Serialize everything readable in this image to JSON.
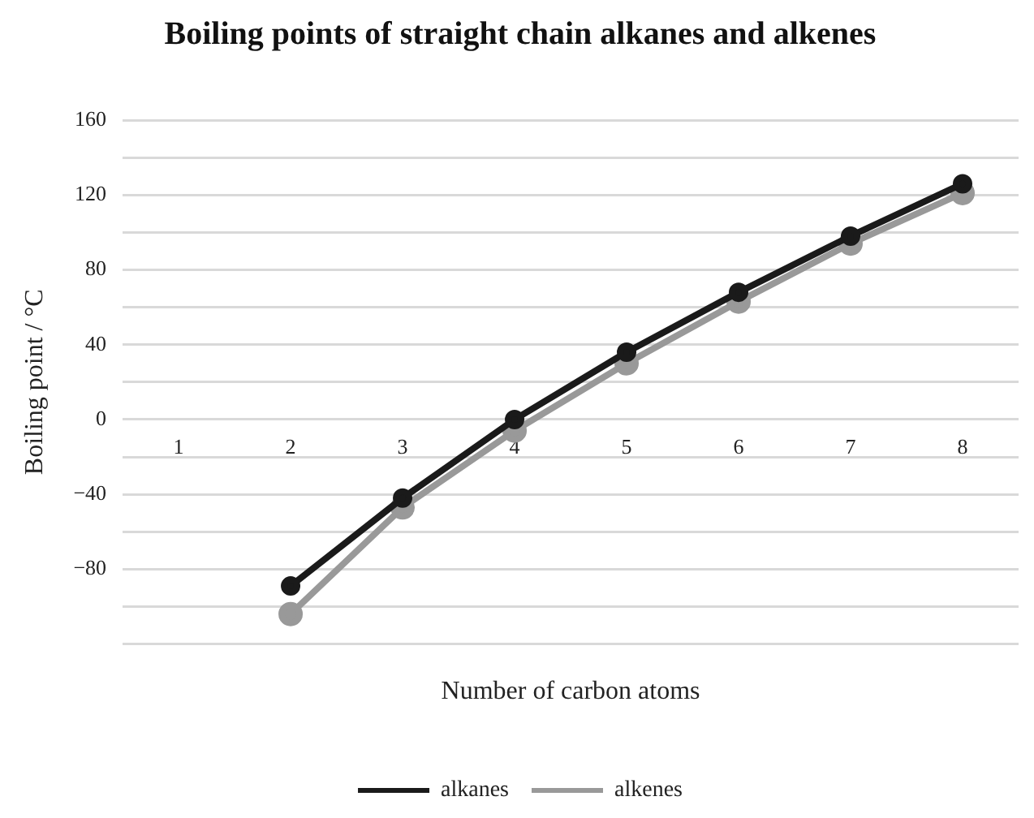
{
  "chart_data": {
    "type": "line",
    "title": "Boiling points of straight chain alkanes and alkenes",
    "xlabel": "Number of carbon atoms",
    "ylabel": "Boiling point / °C",
    "categories": [
      "1",
      "2",
      "3",
      "4",
      "5",
      "6",
      "7",
      "8"
    ],
    "series": [
      {
        "name": "alkanes",
        "color": "#1a1a1a",
        "values": [
          null,
          -89,
          -42,
          0,
          36,
          68,
          98,
          126
        ]
      },
      {
        "name": "alkenes",
        "color": "#999999",
        "values": [
          null,
          -104,
          -47,
          -6,
          30,
          63,
          94,
          121
        ]
      }
    ],
    "ylim": [
      -120,
      160
    ],
    "yticks": [
      {
        "value": -120,
        "label": null
      },
      -80,
      {
        "value": -100,
        "label": null
      },
      {
        "value": -60,
        "label": null
      },
      -40,
      {
        "value": -20,
        "label": null
      },
      0,
      {
        "value": 20,
        "label": null
      },
      40,
      {
        "value": 60,
        "label": null
      },
      80,
      {
        "value": 100,
        "label": null
      },
      120,
      {
        "value": 140,
        "label": null
      },
      160
    ],
    "grid": "y",
    "legend": "bottom",
    "marker": "circle",
    "line_style": "solid"
  }
}
